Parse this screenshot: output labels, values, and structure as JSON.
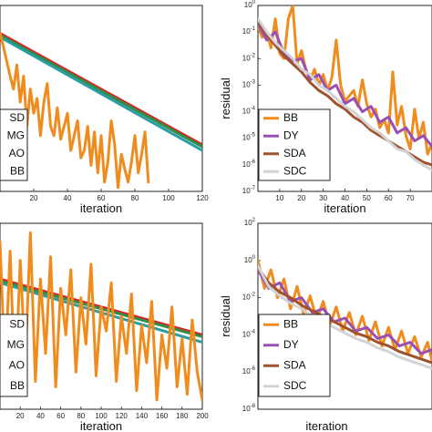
{
  "chart_data": [
    {
      "id": "tl",
      "type": "line",
      "xlabel": "iteration",
      "ylabel": "",
      "xlim": [
        0,
        120
      ],
      "xticks": [
        20,
        40,
        60,
        80,
        100,
        120
      ],
      "ylim": [
        0,
        1
      ],
      "legend": {
        "placement": "left",
        "entries": [
          "SD",
          "MG",
          "AO",
          "BB"
        ],
        "colors": [
          "#1f1f1f",
          "#1f1f1f",
          "#1f1f1f",
          "#f08c1e"
        ]
      },
      "series": [
        {
          "name": "SD",
          "color": "#d62728",
          "x": [
            0,
            120
          ],
          "y": [
            0.85,
            0.25
          ]
        },
        {
          "name": "MG",
          "color": "#2f8f4a",
          "x": [
            0,
            120
          ],
          "y": [
            0.84,
            0.24
          ]
        },
        {
          "name": "AO",
          "color": "#2a9da5",
          "x": [
            0,
            120
          ],
          "y": [
            0.83,
            0.22
          ]
        },
        {
          "name": "BB",
          "color": "#f08c1e",
          "x": [
            0,
            2,
            4,
            6,
            8,
            10,
            12,
            14,
            16,
            18,
            20,
            22,
            24,
            26,
            28,
            30,
            32,
            34,
            36,
            38,
            40,
            42,
            44,
            46,
            48,
            50,
            52,
            54,
            56,
            58,
            60,
            62,
            64,
            66,
            68,
            70,
            72,
            74,
            76,
            78,
            80,
            82,
            84,
            86,
            88
          ],
          "y": [
            0.85,
            0.78,
            0.7,
            0.62,
            0.55,
            0.68,
            0.48,
            0.62,
            0.35,
            0.55,
            0.42,
            0.5,
            0.3,
            0.48,
            0.58,
            0.35,
            0.3,
            0.45,
            0.28,
            0.35,
            0.42,
            0.22,
            0.3,
            0.38,
            0.18,
            0.22,
            0.35,
            0.14,
            0.32,
            0.1,
            0.3,
            0.05,
            0.16,
            0.38,
            0.25,
            0.02,
            0.2,
            0.12,
            0.05,
            0.16,
            0.3,
            0.1,
            0.2,
            0.32,
            0.05
          ]
        }
      ]
    },
    {
      "id": "tr",
      "type": "line",
      "xlabel": "iteration",
      "ylabel": "residual",
      "log": true,
      "xlim": [
        0,
        80
      ],
      "xticks": [
        10,
        20,
        30,
        40,
        50,
        60,
        70
      ],
      "ylim": [
        -7,
        0
      ],
      "yticks": [
        0,
        -1,
        -2,
        -3,
        -4,
        -5,
        -6,
        -7
      ],
      "legend": {
        "placement": "bottom-left",
        "entries": [
          "BB",
          "DY",
          "SDA",
          "SDC"
        ],
        "colors": [
          "#f08c1e",
          "#9b4fb3",
          "#a0522d",
          "#d3d3d3"
        ]
      },
      "series": [
        {
          "name": "BB",
          "color": "#f08c1e",
          "x": [
            0,
            2,
            4,
            6,
            8,
            10,
            12,
            14,
            16,
            18,
            20,
            22,
            24,
            26,
            28,
            30,
            32,
            34,
            36,
            38,
            40,
            42,
            44,
            46,
            48,
            50,
            52,
            54,
            56,
            58,
            60,
            62,
            64,
            66,
            68,
            70,
            72,
            74,
            76,
            78,
            80
          ],
          "y": [
            -0.8,
            -1.2,
            -1.0,
            -1.6,
            -0.5,
            -1.8,
            -2.0,
            -0.5,
            0.0,
            -2.2,
            -1.7,
            -2.4,
            -2.8,
            -2.4,
            -3.0,
            -2.6,
            -3.2,
            -2.7,
            -1.3,
            -3.0,
            -3.6,
            -3.4,
            -3.2,
            -3.8,
            -2.8,
            -3.7,
            -4.2,
            -3.9,
            -4.6,
            -4.3,
            -4.8,
            -2.5,
            -4.5,
            -3.8,
            -4.9,
            -5.4,
            -3.9,
            -5.0,
            -4.4,
            -5.6,
            -5.2
          ]
        },
        {
          "name": "DY",
          "color": "#9b4fb3",
          "x": [
            0,
            4,
            8,
            12,
            16,
            20,
            24,
            28,
            32,
            36,
            40,
            44,
            48,
            52,
            56,
            60,
            64,
            68,
            72,
            76,
            80
          ],
          "y": [
            -0.7,
            -1.3,
            -1.0,
            -1.8,
            -2.1,
            -2.0,
            -2.8,
            -2.6,
            -3.2,
            -3.0,
            -3.7,
            -3.5,
            -4.0,
            -3.8,
            -4.4,
            -4.2,
            -4.8,
            -4.6,
            -5.1,
            -4.9,
            -5.3
          ]
        },
        {
          "name": "SDA",
          "color": "#a0522d",
          "x": [
            0,
            4,
            8,
            12,
            16,
            20,
            24,
            28,
            32,
            36,
            40,
            44,
            48,
            52,
            56,
            60,
            64,
            68,
            72,
            76,
            80
          ],
          "y": [
            -0.6,
            -1.1,
            -1.5,
            -1.9,
            -2.2,
            -2.5,
            -2.9,
            -3.2,
            -3.4,
            -3.7,
            -3.9,
            -4.2,
            -4.4,
            -4.7,
            -4.9,
            -5.1,
            -5.3,
            -5.5,
            -5.7,
            -5.9,
            -6.0
          ]
        },
        {
          "name": "SDC",
          "color": "#d3d3d3",
          "x": [
            0,
            4,
            8,
            12,
            16,
            20,
            24,
            28,
            32,
            36,
            40,
            44,
            48,
            52,
            56,
            60,
            64,
            68,
            72,
            76,
            80
          ],
          "y": [
            -0.5,
            -1.0,
            -1.4,
            -1.7,
            -2.0,
            -2.4,
            -2.6,
            -3.0,
            -3.2,
            -3.5,
            -3.8,
            -4.0,
            -4.3,
            -4.6,
            -4.8,
            -5.1,
            -5.4,
            -5.5,
            -5.8,
            -6.0,
            -6.2
          ]
        }
      ]
    },
    {
      "id": "bl",
      "type": "line",
      "xlabel": "iteration",
      "ylabel": "",
      "xlim": [
        0,
        200
      ],
      "xticks": [
        20,
        40,
        60,
        80,
        100,
        120,
        140,
        160,
        180,
        200
      ],
      "ylim": [
        0,
        1
      ],
      "legend": {
        "placement": "left",
        "entries": [
          "SD",
          "MG",
          "AO",
          "BB"
        ],
        "colors": [
          "#1f1f1f",
          "#1f1f1f",
          "#1f1f1f",
          "#f08c1e"
        ]
      },
      "series": [
        {
          "name": "SD",
          "color": "#d62728",
          "x": [
            0,
            200
          ],
          "y": [
            0.7,
            0.4
          ]
        },
        {
          "name": "MG",
          "color": "#2f8f4a",
          "x": [
            0,
            200
          ],
          "y": [
            0.69,
            0.39
          ]
        },
        {
          "name": "AO",
          "color": "#2a9da5",
          "x": [
            0,
            200
          ],
          "y": [
            0.68,
            0.36
          ]
        },
        {
          "name": "BB",
          "color": "#f08c1e",
          "x": [
            0,
            5,
            10,
            15,
            20,
            25,
            30,
            35,
            40,
            45,
            50,
            55,
            60,
            65,
            70,
            75,
            80,
            85,
            90,
            95,
            100,
            105,
            110,
            115,
            120,
            125,
            130,
            135,
            140,
            145,
            150,
            155,
            160,
            165,
            170,
            175,
            180,
            185,
            190,
            195,
            200
          ],
          "y": [
            0.9,
            0.2,
            0.85,
            0.1,
            0.8,
            0.25,
            0.95,
            0.15,
            0.7,
            0.3,
            0.82,
            0.12,
            0.65,
            0.4,
            0.75,
            0.2,
            0.6,
            0.35,
            0.78,
            0.18,
            0.55,
            0.42,
            0.68,
            0.15,
            0.5,
            0.3,
            0.62,
            0.1,
            0.45,
            0.25,
            0.58,
            0.05,
            0.4,
            0.22,
            0.55,
            0.12,
            0.38,
            0.08,
            0.48,
            0.2,
            0.05
          ]
        }
      ]
    },
    {
      "id": "br",
      "type": "line",
      "xlabel": "iteration",
      "ylabel": "residual",
      "log": true,
      "xlim": [
        0,
        80
      ],
      "xticks": [],
      "ylim": [
        -8,
        2
      ],
      "yticks": [
        2,
        0,
        -2,
        -4,
        -6,
        -8
      ],
      "legend": {
        "placement": "bottom-left",
        "entries": [
          "BB",
          "DY",
          "SDA",
          "SDC"
        ],
        "colors": [
          "#f08c1e",
          "#9b4fb3",
          "#a0522d",
          "#d3d3d3"
        ]
      },
      "series": [
        {
          "name": "BB",
          "color": "#f08c1e",
          "x": [
            0,
            3,
            6,
            9,
            12,
            15,
            18,
            21,
            24,
            27,
            30,
            33,
            36,
            39,
            42,
            45,
            48,
            51,
            54,
            57,
            60,
            63,
            66,
            69,
            72,
            75,
            78,
            80
          ],
          "y": [
            0.0,
            -1.5,
            -0.5,
            -2.0,
            -1.0,
            -2.6,
            -1.4,
            -2.9,
            -1.9,
            -3.2,
            -2.2,
            -3.5,
            -2.5,
            -3.8,
            -2.8,
            -4.0,
            -3.0,
            -4.3,
            -3.3,
            -4.6,
            -3.6,
            -4.8,
            -3.8,
            -5.0,
            -4.1,
            -5.2,
            -4.4,
            -5.4
          ]
        },
        {
          "name": "DY",
          "color": "#9b4fb3",
          "x": [
            0,
            5,
            10,
            15,
            20,
            25,
            30,
            35,
            40,
            45,
            50,
            55,
            60,
            65,
            70,
            75,
            80
          ],
          "y": [
            -0.5,
            -1.5,
            -1.2,
            -2.2,
            -2.0,
            -2.8,
            -2.6,
            -3.3,
            -3.1,
            -3.8,
            -3.6,
            -4.2,
            -4.0,
            -4.6,
            -4.4,
            -5.0,
            -4.8
          ]
        },
        {
          "name": "SDA",
          "color": "#a0522d",
          "x": [
            0,
            5,
            10,
            15,
            20,
            25,
            30,
            35,
            40,
            45,
            50,
            55,
            60,
            65,
            70,
            75,
            80
          ],
          "y": [
            -0.4,
            -1.2,
            -1.7,
            -2.0,
            -2.4,
            -2.7,
            -3.0,
            -3.3,
            -3.6,
            -3.9,
            -4.1,
            -4.4,
            -4.6,
            -4.9,
            -5.1,
            -5.3,
            -5.5
          ]
        },
        {
          "name": "SDC",
          "color": "#d3d3d3",
          "x": [
            0,
            5,
            10,
            15,
            20,
            25,
            30,
            35,
            40,
            45,
            50,
            55,
            60,
            65,
            70,
            75,
            80
          ],
          "y": [
            -0.3,
            -1.4,
            -1.9,
            -2.3,
            -2.6,
            -3.0,
            -3.3,
            -3.6,
            -3.9,
            -4.2,
            -4.4,
            -4.7,
            -4.9,
            -5.2,
            -5.4,
            -5.6,
            -5.8
          ]
        }
      ]
    }
  ]
}
